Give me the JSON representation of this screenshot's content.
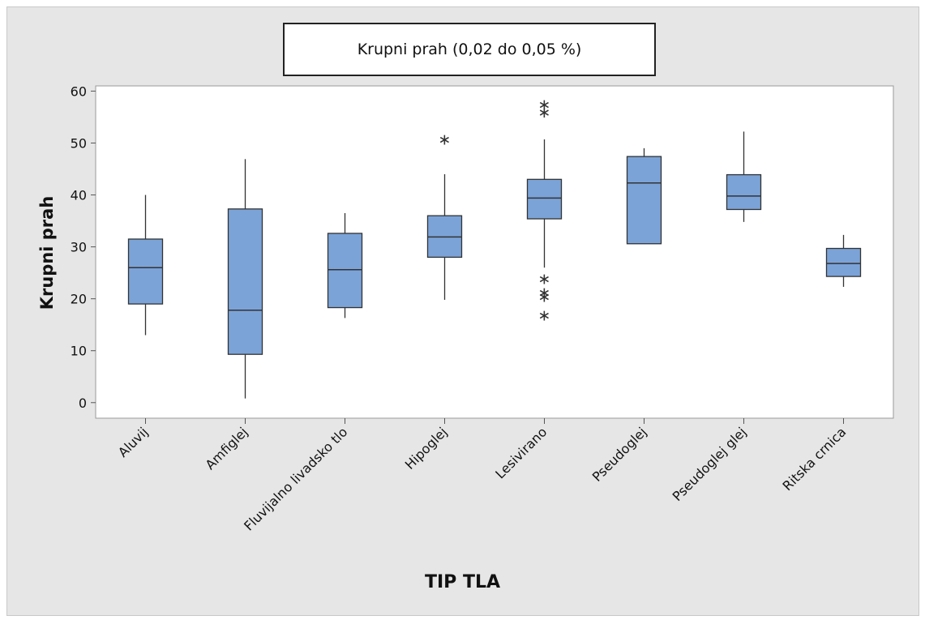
{
  "chart_data": {
    "type": "boxplot",
    "title": "Krupni prah (0,02 do 0,05 %)",
    "xlabel": "TIP TLA",
    "ylabel": "Krupni prah",
    "ylim": [
      -3,
      61
    ],
    "yticks": [
      0,
      10,
      20,
      30,
      40,
      50,
      60
    ],
    "grid": false,
    "box_color": "#7ba3d8",
    "categories": [
      "Aluvij",
      "Amfiglej",
      "Fluvijalno livadsko tlo",
      "Hipoglej",
      "Lesivirano",
      "Pseudoglej",
      "Pseudoglej glej",
      "Ritska crnica"
    ],
    "boxes": [
      {
        "whisker_low": 13.0,
        "q1": 19.0,
        "median": 26.0,
        "q3": 31.5,
        "whisker_high": 40.0,
        "outliers": []
      },
      {
        "whisker_low": 0.8,
        "q1": 9.3,
        "median": 17.8,
        "q3": 37.3,
        "whisker_high": 46.9,
        "outliers": []
      },
      {
        "whisker_low": 16.3,
        "q1": 18.3,
        "median": 25.6,
        "q3": 32.6,
        "whisker_high": 36.5,
        "outliers": []
      },
      {
        "whisker_low": 19.8,
        "q1": 28.0,
        "median": 31.9,
        "q3": 36.0,
        "whisker_high": 44.0,
        "outliers": [
          50.8
        ]
      },
      {
        "whisker_low": 26.0,
        "q1": 35.4,
        "median": 39.4,
        "q3": 43.0,
        "whisker_high": 50.7,
        "outliers": [
          57.5,
          56.0,
          23.9,
          21.3,
          20.5,
          16.9
        ]
      },
      {
        "whisker_low": 30.6,
        "q1": 30.6,
        "median": 42.3,
        "q3": 47.4,
        "whisker_high": 49.0,
        "outliers": []
      },
      {
        "whisker_low": 34.8,
        "q1": 37.2,
        "median": 39.8,
        "q3": 43.9,
        "whisker_high": 52.2,
        "outliers": []
      },
      {
        "whisker_low": 22.3,
        "q1": 24.3,
        "median": 26.8,
        "q3": 29.7,
        "whisker_high": 32.3,
        "outliers": []
      }
    ]
  }
}
